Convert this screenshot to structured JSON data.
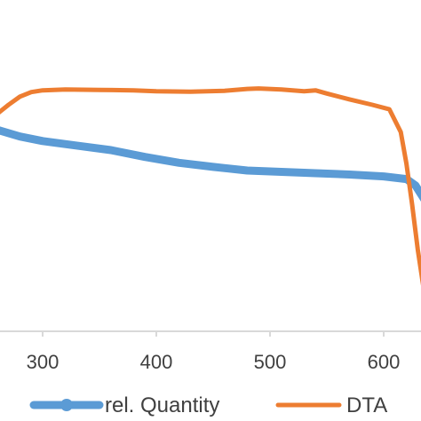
{
  "chart_data": {
    "type": "line",
    "title": "",
    "xlabel": "",
    "ylabel": "",
    "x_ticks": [
      300,
      400,
      500,
      600
    ],
    "xlim": [
      260,
      636
    ],
    "grid": false,
    "legend_position": "bottom",
    "series": [
      {
        "name": "rel. Quantity",
        "color": "#5B9BD5",
        "marker": "circle",
        "x": [
          260,
          280,
          300,
          330,
          360,
          390,
          420,
          450,
          480,
          510,
          540,
          570,
          600,
          620,
          628,
          636
        ],
        "y": [
          0.845,
          0.83,
          0.82,
          0.81,
          0.8,
          0.785,
          0.772,
          0.763,
          0.755,
          0.752,
          0.749,
          0.746,
          0.742,
          0.736,
          0.722,
          0.69
        ]
      },
      {
        "name": "DTA",
        "color": "#ED7D31",
        "marker": "none",
        "x": [
          260,
          270,
          280,
          290,
          300,
          320,
          350,
          380,
          400,
          430,
          460,
          480,
          490,
          510,
          530,
          540,
          550,
          570,
          590,
          605,
          615,
          620,
          625,
          630,
          636
        ],
        "y": [
          0.88,
          0.9,
          0.918,
          0.928,
          0.932,
          0.934,
          0.933,
          0.932,
          0.93,
          0.929,
          0.931,
          0.935,
          0.936,
          0.934,
          0.93,
          0.932,
          0.925,
          0.912,
          0.9,
          0.89,
          0.84,
          0.77,
          0.68,
          0.58,
          0.48
        ]
      }
    ]
  }
}
